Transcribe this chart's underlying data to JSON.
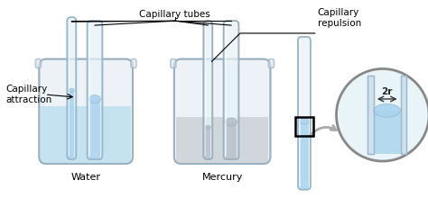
{
  "bg_color": "#ffffff",
  "water_color": "#b8ddf0",
  "mercury_color": "#c8cdd2",
  "beaker_fill_color": "#dde8f0",
  "beaker_edge_color": "#9ab0c0",
  "tube_glass_color": "#e8f2f8",
  "tube_edge_color": "#9ab8cc",
  "tube_water_color": "#a8d4ee",
  "tube_mercury_color": "#b8bfc8",
  "zoom_bg_color": "#e8f4f8",
  "zoom_edge_color": "#888888",
  "label_capillary_tubes": "Capillary tubes",
  "label_capillary_repulsion": "Capillary\nrepulsion",
  "label_capillary_attraction": "Capillary\nattraction",
  "label_water": "Water",
  "label_mercury": "Mercury",
  "label_2r": "2r",
  "font_size": 7.5
}
